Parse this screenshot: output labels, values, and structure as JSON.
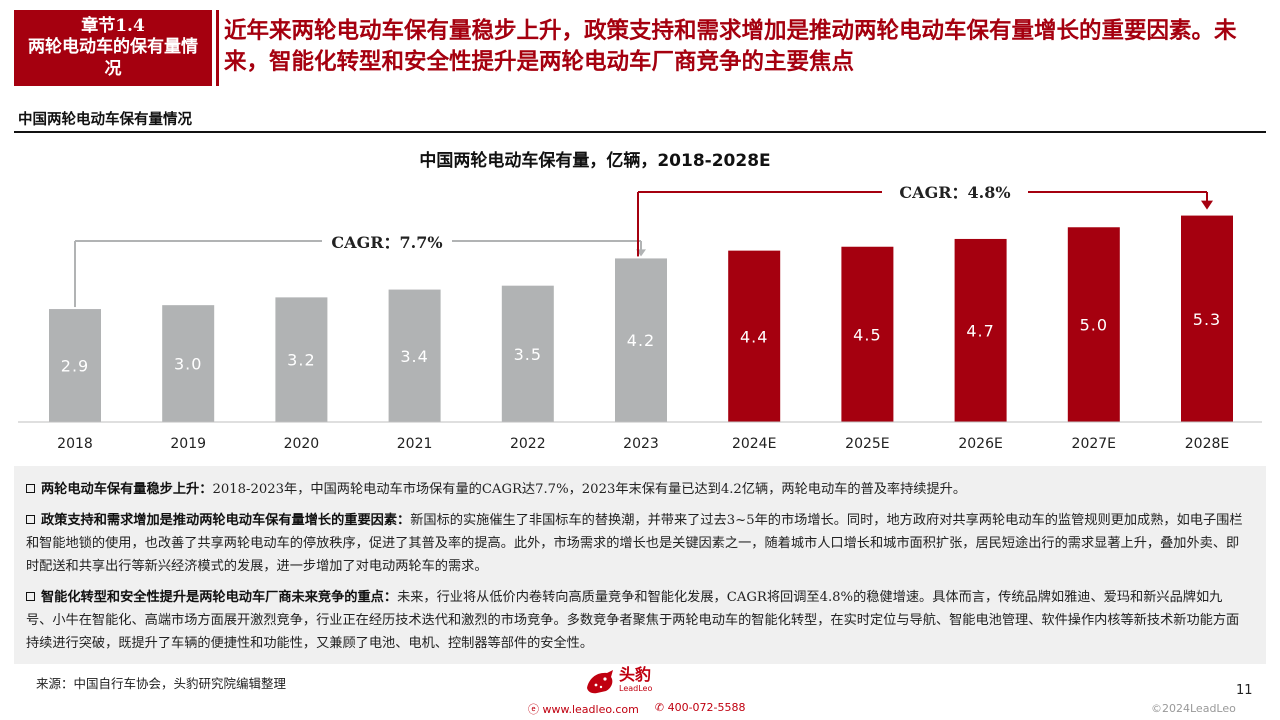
{
  "header": {
    "chapter_label": "章节1.4",
    "chapter_title": "两轮电动车的保有量情况",
    "headline": "近年来两轮电动车保有量稳步上升，政策支持和需求增加是推动两轮电动车保有量增长的重要因素。未来，智能化转型和安全性提升是两轮电动车厂商竞争的主要焦点"
  },
  "section_title": "中国两轮电动车保有量情况",
  "chart_data": {
    "type": "bar",
    "title_cn": "中国两轮电动车保有量，亿辆，",
    "title_range": "2018-2028E",
    "categories": [
      "2018",
      "2019",
      "2020",
      "2021",
      "2022",
      "2023",
      "2024E",
      "2025E",
      "2026E",
      "2027E",
      "2028E"
    ],
    "values": [
      2.9,
      3.0,
      3.2,
      3.4,
      3.5,
      4.2,
      4.4,
      4.5,
      4.7,
      5.0,
      5.3
    ],
    "value_labels": [
      "2.9",
      "3.0",
      "3.2",
      "3.4",
      "3.5",
      "4.2",
      "4.4",
      "4.5",
      "4.7",
      "5.0",
      "5.3"
    ],
    "actual_color": "#b1b3b4",
    "forecast_color": "#a5000f",
    "forecast_start_index": 6,
    "ylim": [
      0,
      5.7
    ],
    "cagr_annotations": [
      {
        "label": "CAGR：7.7%",
        "from": "2018",
        "to": "2023",
        "color": "#b1b3b4"
      },
      {
        "label": "CAGR：4.8%",
        "from": "2023",
        "to": "2028E",
        "color": "#a5000f"
      }
    ]
  },
  "bullets": [
    {
      "lead": "两轮电动车保有量稳步上升：",
      "text": "2018-2023年，中国两轮电动车市场保有量的CAGR达7.7%，2023年末保有量已达到4.2亿辆，两轮电动车的普及率持续提升。"
    },
    {
      "lead": "政策支持和需求增加是推动两轮电动车保有量增长的重要因素：",
      "text": "新国标的实施催生了非国标车的替换潮，并带来了过去3~5年的市场增长。同时，地方政府对共享两轮电动车的监管规则更加成熟，如电子围栏和智能地锁的使用，也改善了共享两轮电动车的停放秩序，促进了其普及率的提高。此外，市场需求的增长也是关键因素之一，随着城市人口增长和城市面积扩张，居民短途出行的需求显著上升，叠加外卖、即时配送和共享出行等新兴经济模式的发展，进一步增加了对电动两轮车的需求。"
    },
    {
      "lead": "智能化转型和安全性提升是两轮电动车厂商未来竞争的重点：",
      "text": "未来，行业将从低价内卷转向高质量竞争和智能化发展，CAGR将回调至4.8%的稳健增速。具体而言，传统品牌如雅迪、爱玛和新兴品牌如九号、小牛在智能化、高端市场方面展开激烈竞争，行业正在经历技术迭代和激烈的市场竞争。多数竞争者聚焦于两轮电动车的智能化转型，在实时定位与导航、智能电池管理、软件操作内核等新技术新功能方面持续进行突破，既提升了车辆的便捷性和功能性，又兼顾了电池、电机、控制器等部件的安全性。"
    }
  ],
  "footer": {
    "source": "来源：中国自行车协会，头豹研究院编辑整理",
    "brand_cn": "头豹",
    "brand_en": "LeadLeo",
    "website": "www.leadleo.com",
    "phone": "400-072-5588",
    "page_number": "11",
    "copyright": "©2024LeadLeo"
  }
}
